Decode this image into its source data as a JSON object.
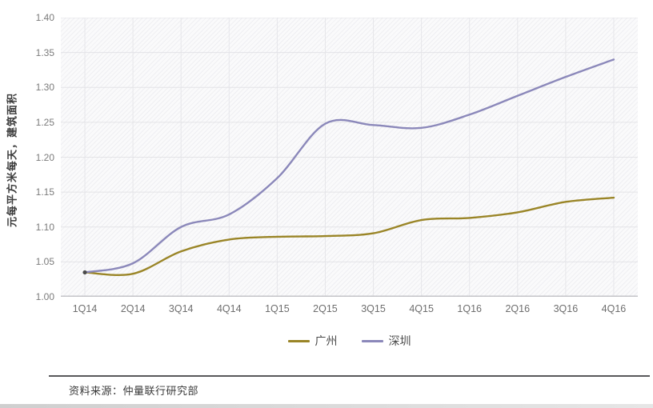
{
  "chart_data": {
    "type": "line",
    "title": "",
    "xlabel": "",
    "ylabel": "元每平方米每天，建筑面积",
    "ylim": [
      1.0,
      1.4
    ],
    "y_ticks": [
      "1.00",
      "1.05",
      "1.10",
      "1.15",
      "1.20",
      "1.25",
      "1.30",
      "1.35",
      "1.40"
    ],
    "grid": true,
    "legend_position": "bottom",
    "categories": [
      "1Q14",
      "2Q14",
      "3Q14",
      "4Q14",
      "1Q15",
      "2Q15",
      "3Q15",
      "4Q15",
      "1Q16",
      "2Q16",
      "3Q16",
      "4Q16"
    ],
    "series": [
      {
        "name": "广州",
        "slug": "guangzhou",
        "color": "#9a8527",
        "values": [
          1.035,
          1.033,
          1.065,
          1.082,
          1.086,
          1.087,
          1.091,
          1.11,
          1.113,
          1.121,
          1.136,
          1.142
        ]
      },
      {
        "name": "深圳",
        "slug": "shenzhen",
        "color": "#8b88ba",
        "values": [
          1.035,
          1.048,
          1.1,
          1.118,
          1.17,
          1.248,
          1.246,
          1.242,
          1.261,
          1.288,
          1.315,
          1.34
        ]
      }
    ],
    "colors": {
      "h_gridline": "#e3e3e7",
      "v_gridline": "#e6e6ea",
      "axis_line": "#c4c4c8",
      "start_marker": "#4a4a4a"
    }
  },
  "source_note": "资料来源：仲量联行研究部"
}
